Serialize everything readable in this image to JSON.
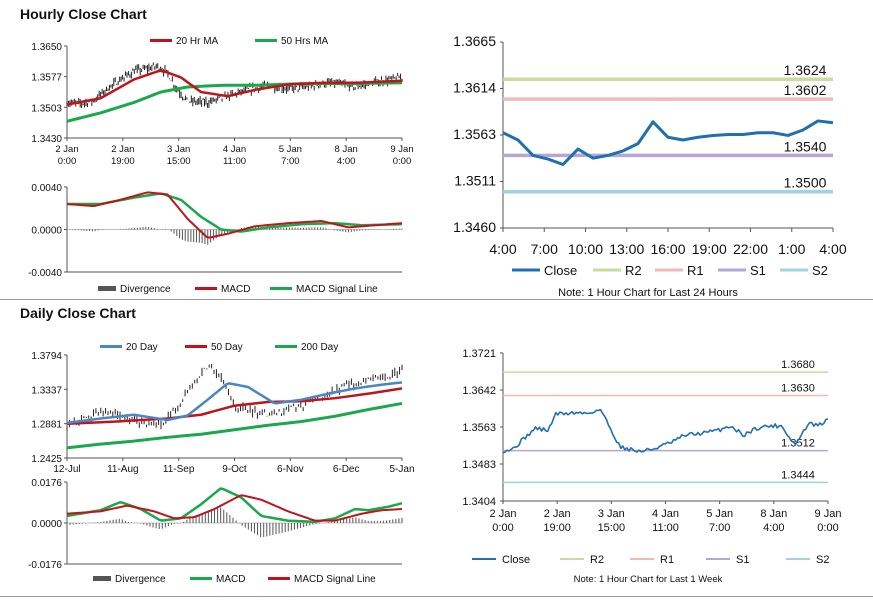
{
  "page": {
    "hourly_title": "Hourly Close Chart",
    "daily_title": "Daily Close Chart"
  },
  "colors": {
    "close": "#1f6fb2",
    "ma_red": "#c0141c",
    "ma_green": "#1aa84a",
    "ma_blue": "#4a86c4",
    "r2": "#c5dea0",
    "r1": "#f0b8b8",
    "s1": "#b4a7d6",
    "s2": "#9fd3e0",
    "divergence": "#555555",
    "candle": "#222222"
  },
  "chart_data": [
    {
      "id": "hourly-price",
      "type": "candlestick",
      "ylim": [
        1.343,
        1.365
      ],
      "yticks": [
        "1.3650",
        "1.3577",
        "1.3503",
        "1.3430"
      ],
      "xticks": [
        [
          "2 Jan",
          "0:00"
        ],
        [
          "2 Jan",
          "19:00"
        ],
        [
          "3 Jan",
          "15:00"
        ],
        [
          "4 Jan",
          "11:00"
        ],
        [
          "5 Jan",
          "7:00"
        ],
        [
          "8 Jan",
          "4:00"
        ],
        [
          "9 Jan",
          "0:00"
        ]
      ],
      "legend": [
        "20 Hr MA",
        "50 Hrs MA"
      ],
      "close_keys": [
        [
          0,
          1.3515
        ],
        [
          0.04,
          1.3512
        ],
        [
          0.08,
          1.352
        ],
        [
          0.12,
          1.3548
        ],
        [
          0.16,
          1.357
        ],
        [
          0.2,
          1.359
        ],
        [
          0.24,
          1.3596
        ],
        [
          0.27,
          1.3602
        ],
        [
          0.3,
          1.3585
        ],
        [
          0.33,
          1.3545
        ],
        [
          0.36,
          1.3518
        ],
        [
          0.42,
          1.3515
        ],
        [
          0.48,
          1.353
        ],
        [
          0.54,
          1.3545
        ],
        [
          0.6,
          1.3555
        ],
        [
          0.66,
          1.3548
        ],
        [
          0.72,
          1.3552
        ],
        [
          0.76,
          1.356
        ],
        [
          0.8,
          1.3562
        ],
        [
          0.86,
          1.3552
        ],
        [
          0.9,
          1.356
        ],
        [
          0.95,
          1.3568
        ],
        [
          1,
          1.3575
        ]
      ],
      "ma20_keys": [
        [
          0,
          1.351
        ],
        [
          0.1,
          1.3525
        ],
        [
          0.2,
          1.357
        ],
        [
          0.28,
          1.3592
        ],
        [
          0.34,
          1.3575
        ],
        [
          0.4,
          1.354
        ],
        [
          0.48,
          1.353
        ],
        [
          0.56,
          1.3545
        ],
        [
          0.66,
          1.3558
        ],
        [
          0.76,
          1.3562
        ],
        [
          0.86,
          1.3562
        ],
        [
          1,
          1.3567
        ]
      ],
      "ma50_keys": [
        [
          0,
          1.347
        ],
        [
          0.1,
          1.349
        ],
        [
          0.2,
          1.3515
        ],
        [
          0.28,
          1.354
        ],
        [
          0.36,
          1.3552
        ],
        [
          0.46,
          1.3556
        ],
        [
          0.56,
          1.3556
        ],
        [
          0.7,
          1.356
        ],
        [
          0.84,
          1.356
        ],
        [
          1,
          1.3562
        ]
      ]
    },
    {
      "id": "hourly-macd",
      "type": "macd",
      "ylim": [
        -0.004,
        0.004
      ],
      "yticks": [
        "0.0040",
        "0.0000",
        "-0.0040"
      ],
      "legend": [
        "Divergence",
        "MACD",
        "MACD Signal Line"
      ],
      "macd_keys": [
        [
          0,
          0.0024
        ],
        [
          0.08,
          0.0022
        ],
        [
          0.16,
          0.0028
        ],
        [
          0.24,
          0.0035
        ],
        [
          0.3,
          0.0033
        ],
        [
          0.36,
          0.001
        ],
        [
          0.42,
          -0.0008
        ],
        [
          0.48,
          -0.0004
        ],
        [
          0.56,
          0.0003
        ],
        [
          0.66,
          0.0006
        ],
        [
          0.76,
          0.0008
        ],
        [
          0.84,
          0.0002
        ],
        [
          0.92,
          0.0004
        ],
        [
          1,
          0.0006
        ]
      ],
      "signal_keys": [
        [
          0,
          0.0024
        ],
        [
          0.1,
          0.0024
        ],
        [
          0.2,
          0.003
        ],
        [
          0.28,
          0.0034
        ],
        [
          0.34,
          0.0028
        ],
        [
          0.4,
          0.0012
        ],
        [
          0.46,
          0.0
        ],
        [
          0.52,
          -0.0002
        ],
        [
          0.6,
          0.0002
        ],
        [
          0.7,
          0.0005
        ],
        [
          0.8,
          0.0006
        ],
        [
          0.88,
          0.0004
        ],
        [
          1,
          0.0005
        ]
      ]
    },
    {
      "id": "hourly-levels",
      "type": "line",
      "ylim": [
        1.346,
        1.3665
      ],
      "yticks": [
        "1.3665",
        "1.3614",
        "1.3563",
        "1.3511",
        "1.3460"
      ],
      "xticks": [
        "4:00",
        "7:00",
        "10:00",
        "13:00",
        "16:00",
        "19:00",
        "22:00",
        "1:00",
        "4:00"
      ],
      "series": [
        {
          "name": "Close",
          "values": [
            1.3565,
            1.3557,
            1.354,
            1.3536,
            1.353,
            1.3547,
            1.3537,
            1.354,
            1.3545,
            1.3553,
            1.3577,
            1.356,
            1.3557,
            1.356,
            1.3562,
            1.3563,
            1.3563,
            1.3565,
            1.3565,
            1.3562,
            1.3568,
            1.3578,
            1.3576
          ]
        }
      ],
      "levels": [
        {
          "name": "R2",
          "value": 1.3624,
          "label": "1.3624"
        },
        {
          "name": "R1",
          "value": 1.3602,
          "label": "1.3602"
        },
        {
          "name": "S1",
          "value": 1.354,
          "label": "1.3540"
        },
        {
          "name": "S2",
          "value": 1.35,
          "label": "1.3500"
        }
      ],
      "legend": [
        "Close",
        "R2",
        "R1",
        "S1",
        "S2"
      ],
      "note": "Note: 1 Hour Chart for Last 24 Hours"
    },
    {
      "id": "daily-price",
      "type": "candlestick",
      "ylim": [
        1.2425,
        1.3794
      ],
      "yticks": [
        "1.3794",
        "1.3337",
        "1.2881",
        "1.2425"
      ],
      "xticks": [
        "12-Jul",
        "11-Aug",
        "11-Sep",
        "9-Oct",
        "6-Nov",
        "6-Dec",
        "5-Jan"
      ],
      "legend": [
        "20 Day",
        "50 Day",
        "200 Day"
      ],
      "close_keys": [
        [
          0,
          1.2881
        ],
        [
          0.05,
          1.292
        ],
        [
          0.1,
          1.305
        ],
        [
          0.15,
          1.3
        ],
        [
          0.2,
          1.293
        ],
        [
          0.26,
          1.286
        ],
        [
          0.3,
          1.295
        ],
        [
          0.34,
          1.315
        ],
        [
          0.38,
          1.342
        ],
        [
          0.42,
          1.366
        ],
        [
          0.46,
          1.35
        ],
        [
          0.5,
          1.312
        ],
        [
          0.55,
          1.305
        ],
        [
          0.6,
          1.302
        ],
        [
          0.66,
          1.306
        ],
        [
          0.72,
          1.315
        ],
        [
          0.78,
          1.33
        ],
        [
          0.84,
          1.34
        ],
        [
          0.9,
          1.345
        ],
        [
          0.95,
          1.348
        ],
        [
          1,
          1.359
        ]
      ],
      "ma20_keys": [
        [
          0,
          1.289
        ],
        [
          0.1,
          1.295
        ],
        [
          0.2,
          1.3
        ],
        [
          0.3,
          1.293
        ],
        [
          0.36,
          1.299
        ],
        [
          0.42,
          1.32
        ],
        [
          0.48,
          1.342
        ],
        [
          0.54,
          1.337
        ],
        [
          0.62,
          1.315
        ],
        [
          0.7,
          1.32
        ],
        [
          0.78,
          1.328
        ],
        [
          0.86,
          1.335
        ],
        [
          0.94,
          1.34
        ],
        [
          1,
          1.343
        ]
      ],
      "ma50_keys": [
        [
          0,
          1.288
        ],
        [
          0.15,
          1.291
        ],
        [
          0.3,
          1.295
        ],
        [
          0.4,
          1.3
        ],
        [
          0.5,
          1.312
        ],
        [
          0.6,
          1.317
        ],
        [
          0.7,
          1.318
        ],
        [
          0.8,
          1.322
        ],
        [
          0.9,
          1.328
        ],
        [
          1,
          1.335
        ]
      ],
      "ma200_keys": [
        [
          0,
          1.256
        ],
        [
          0.1,
          1.261
        ],
        [
          0.2,
          1.265
        ],
        [
          0.3,
          1.27
        ],
        [
          0.4,
          1.274
        ],
        [
          0.5,
          1.28
        ],
        [
          0.6,
          1.286
        ],
        [
          0.7,
          1.291
        ],
        [
          0.8,
          1.298
        ],
        [
          0.9,
          1.307
        ],
        [
          1,
          1.315
        ]
      ]
    },
    {
      "id": "daily-macd",
      "type": "macd",
      "ylim": [
        -0.0176,
        0.0176
      ],
      "yticks": [
        "0.0176",
        "0.0000",
        "-0.0176"
      ],
      "legend": [
        "Divergence",
        "MACD",
        "MACD Signal Line"
      ],
      "macd_keys": [
        [
          0,
          0.003
        ],
        [
          0.1,
          0.0055
        ],
        [
          0.16,
          0.009
        ],
        [
          0.22,
          0.006
        ],
        [
          0.28,
          0.001
        ],
        [
          0.34,
          0.002
        ],
        [
          0.4,
          0.008
        ],
        [
          0.46,
          0.015
        ],
        [
          0.52,
          0.011
        ],
        [
          0.58,
          0.003
        ],
        [
          0.66,
          0.001
        ],
        [
          0.74,
          0.0005
        ],
        [
          0.8,
          0.002
        ],
        [
          0.86,
          0.006
        ],
        [
          0.9,
          0.0055
        ],
        [
          0.96,
          0.007
        ],
        [
          1,
          0.0085
        ]
      ],
      "signal_keys": [
        [
          0,
          0.004
        ],
        [
          0.1,
          0.005
        ],
        [
          0.18,
          0.0075
        ],
        [
          0.26,
          0.005
        ],
        [
          0.32,
          0.002
        ],
        [
          0.38,
          0.0025
        ],
        [
          0.44,
          0.006
        ],
        [
          0.52,
          0.012
        ],
        [
          0.58,
          0.01
        ],
        [
          0.66,
          0.005
        ],
        [
          0.74,
          0.001
        ],
        [
          0.8,
          0.001
        ],
        [
          0.88,
          0.004
        ],
        [
          0.94,
          0.0055
        ],
        [
          1,
          0.006
        ]
      ]
    },
    {
      "id": "daily-levels",
      "type": "line",
      "ylim": [
        1.3404,
        1.3721
      ],
      "yticks": [
        "1.3721",
        "1.3642",
        "1.3563",
        "1.3483",
        "1.3404"
      ],
      "xticks": [
        [
          "2 Jan",
          "0:00"
        ],
        [
          "2 Jan",
          "19:00"
        ],
        [
          "3 Jan",
          "15:00"
        ],
        [
          "4 Jan",
          "11:00"
        ],
        [
          "5 Jan",
          "7:00"
        ],
        [
          "8 Jan",
          "4:00"
        ],
        [
          "9 Jan",
          "0:00"
        ]
      ],
      "close_keys": [
        [
          0,
          1.3512
        ],
        [
          0.03,
          1.3515
        ],
        [
          0.06,
          1.3535
        ],
        [
          0.1,
          1.356
        ],
        [
          0.14,
          1.3555
        ],
        [
          0.16,
          1.359
        ],
        [
          0.22,
          1.3593
        ],
        [
          0.26,
          1.3592
        ],
        [
          0.3,
          1.36
        ],
        [
          0.33,
          1.356
        ],
        [
          0.36,
          1.352
        ],
        [
          0.42,
          1.351
        ],
        [
          0.46,
          1.3515
        ],
        [
          0.52,
          1.353
        ],
        [
          0.56,
          1.3545
        ],
        [
          0.62,
          1.355
        ],
        [
          0.66,
          1.3555
        ],
        [
          0.7,
          1.3565
        ],
        [
          0.74,
          1.3545
        ],
        [
          0.78,
          1.356
        ],
        [
          0.82,
          1.3565
        ],
        [
          0.86,
          1.3565
        ],
        [
          0.88,
          1.354
        ],
        [
          0.9,
          1.3525
        ],
        [
          0.94,
          1.357
        ],
        [
          0.97,
          1.3565
        ],
        [
          1,
          1.3578
        ]
      ],
      "levels": [
        {
          "name": "R2",
          "value": 1.368,
          "label": "1.3680"
        },
        {
          "name": "R1",
          "value": 1.363,
          "label": "1.3630"
        },
        {
          "name": "S1",
          "value": 1.3512,
          "label": "1.3512"
        },
        {
          "name": "S2",
          "value": 1.3444,
          "label": "1.3444"
        }
      ],
      "legend": [
        "Close",
        "R2",
        "R1",
        "S1",
        "S2"
      ],
      "note": "Note: 1 Hour Chart for Last 1 Week"
    }
  ]
}
